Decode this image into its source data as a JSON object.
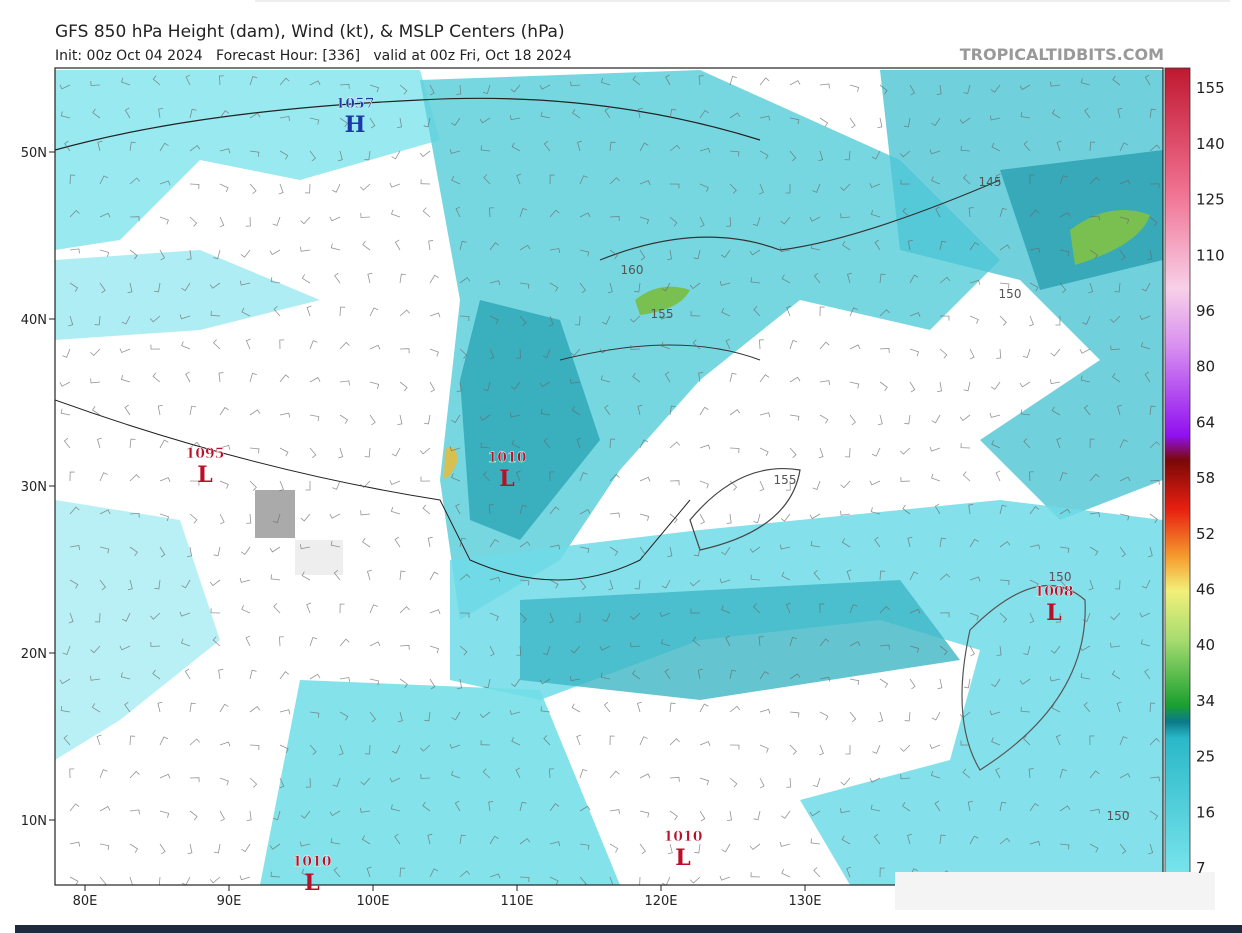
{
  "header": {
    "title": "GFS 850 hPa Height (dam), Wind (kt), & MSLP Centers (hPa)",
    "subtitle": "Init: 00z Oct 04 2024   Forecast Hour: [336]   valid at 00z Fri, Oct 18 2024",
    "watermark": "TROPICALTIDBITS.COM"
  },
  "map": {
    "lon_ticks": [
      {
        "value": 80,
        "label": "80E"
      },
      {
        "value": 90,
        "label": "90E"
      },
      {
        "value": 100,
        "label": "100E"
      },
      {
        "value": 110,
        "label": "110E"
      },
      {
        "value": 120,
        "label": "120E"
      },
      {
        "value": 130,
        "label": "130E"
      }
    ],
    "lat_ticks": [
      {
        "value": 50,
        "label": "50N"
      },
      {
        "value": 40,
        "label": "40N"
      },
      {
        "value": 30,
        "label": "30N"
      },
      {
        "value": 20,
        "label": "20N"
      },
      {
        "value": 10,
        "label": "10N"
      }
    ],
    "pressure_centers": [
      {
        "value": 1057,
        "symbol": "H"
      },
      {
        "value": 1095,
        "symbol": "L"
      },
      {
        "value": 1010,
        "symbol": "L"
      },
      {
        "value": 1008,
        "symbol": "L"
      },
      {
        "value": 1010,
        "symbol": "L"
      },
      {
        "value": 1010,
        "symbol": "L"
      }
    ],
    "contour_labels": [
      160,
      155,
      155,
      145,
      150,
      150,
      150
    ],
    "colorbar_ticks": [
      7,
      16,
      25,
      34,
      40,
      46,
      52,
      58,
      64,
      80,
      96,
      110,
      125,
      140,
      155
    ]
  }
}
